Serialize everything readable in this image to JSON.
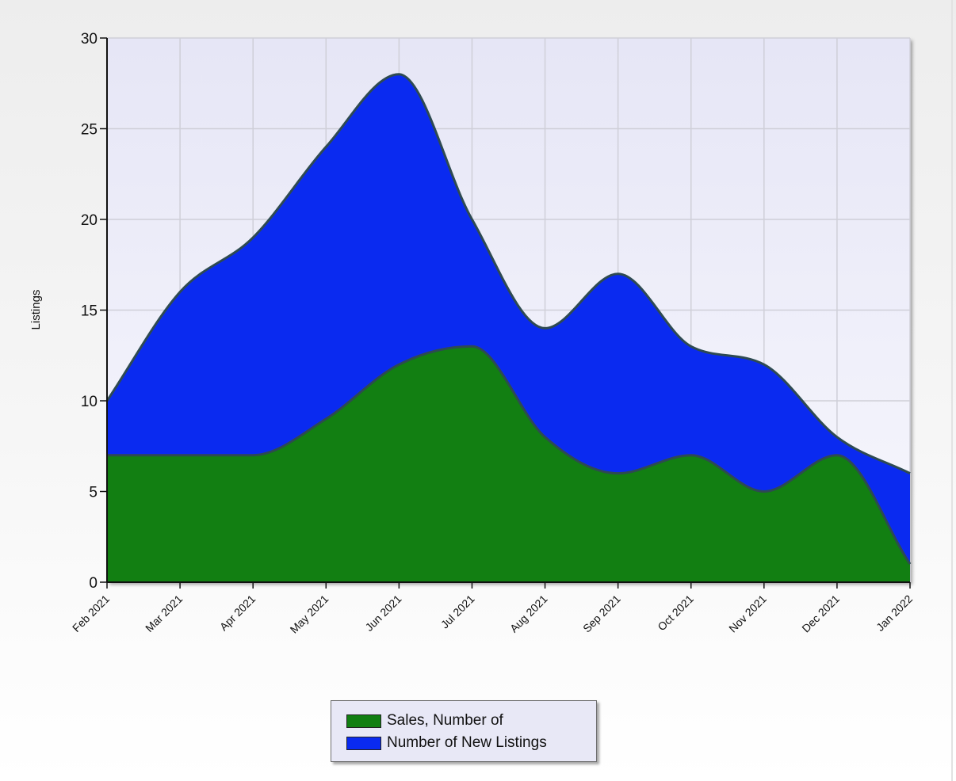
{
  "chart_data": {
    "type": "area",
    "stacked": true,
    "ylabel": "Listings",
    "xlabel": "",
    "ylim": [
      0,
      30
    ],
    "yticks": [
      0,
      5,
      10,
      15,
      20,
      25,
      30
    ],
    "categories": [
      "Feb 2021",
      "Mar 2021",
      "Apr 2021",
      "May 2021",
      "Jun 2021",
      "Jul 2021",
      "Aug 2021",
      "Sep 2021",
      "Oct 2021",
      "Nov 2021",
      "Dec 2021",
      "Jan 2022"
    ],
    "series": [
      {
        "name": "Sales, Number of",
        "color": "#127f12",
        "values": [
          7,
          7,
          7,
          9,
          12,
          13,
          8,
          6,
          7,
          5,
          7,
          1
        ]
      },
      {
        "name": "Number of New Listings",
        "color": "#0a2af0",
        "values": [
          3,
          9,
          12,
          15,
          16,
          7,
          6,
          11,
          6,
          7,
          1,
          5
        ]
      }
    ],
    "grid": true,
    "legend": "bottom-center",
    "plot_background": "#e9e9f8",
    "outline_color": "#2e4a52"
  },
  "legend": {
    "items": [
      {
        "label": "Sales, Number of",
        "color": "#127f12"
      },
      {
        "label": "Number of New Listings",
        "color": "#0a2af0"
      }
    ]
  }
}
